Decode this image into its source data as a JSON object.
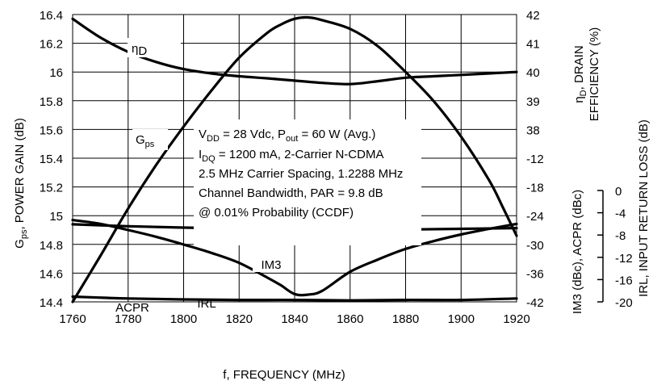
{
  "chart_data": {
    "type": "line",
    "x": {
      "label": "f, FREQUENCY (MHz)",
      "range": [
        1760,
        1920
      ],
      "ticks": [
        "1760",
        "1780",
        "1800",
        "1820",
        "1840",
        "1860",
        "1880",
        "1900",
        "1920"
      ]
    },
    "y_left": {
      "label_main": "G",
      "label_sub": "ps",
      "label_rest": ", POWER GAIN (dB)",
      "range": [
        14.4,
        16.4
      ],
      "ticks": [
        "16.4",
        "16.2",
        "16",
        "15.8",
        "15.6",
        "15.4",
        "15.2",
        "15",
        "14.8",
        "14.6",
        "14.4"
      ]
    },
    "y_right_upper": {
      "label_line1_main": "η",
      "label_line1_sub": "D",
      "label_line1_rest": ", DRAIN",
      "label_line2": "EFFICIENCY (%)",
      "range": [
        37,
        42
      ],
      "ticks": [
        "42",
        "41",
        "40",
        "39",
        "38"
      ]
    },
    "y_right_lower": {
      "label": "IM3 (dBc), ACPR (dBc)",
      "range": [
        -42,
        -12
      ],
      "ticks": [
        "-12",
        "-18",
        "-24",
        "-30",
        "-36",
        "-42"
      ]
    },
    "y_irl": {
      "label": "IRL, INPUT RETURN LOSS (dB)",
      "range": [
        -20,
        0
      ],
      "ticks": [
        "0",
        "-4",
        "-8",
        "-12",
        "-16",
        "-20"
      ]
    },
    "grid": true,
    "series": [
      {
        "name": "G",
        "name_sub": "ps",
        "axis": "left",
        "x": [
          1760,
          1770,
          1780,
          1790,
          1800,
          1810,
          1820,
          1830,
          1835,
          1840,
          1845,
          1850,
          1860,
          1870,
          1880,
          1890,
          1900,
          1910,
          1915,
          1920
        ],
        "y": [
          14.4,
          14.72,
          15.05,
          15.35,
          15.62,
          15.87,
          16.1,
          16.27,
          16.33,
          16.37,
          16.38,
          16.36,
          16.3,
          16.18,
          16.0,
          15.8,
          15.55,
          15.25,
          15.06,
          14.86
        ]
      },
      {
        "name": "η",
        "name_sub": "D",
        "axis": "right_upper",
        "x": [
          1760,
          1770,
          1780,
          1790,
          1800,
          1810,
          1820,
          1830,
          1840,
          1850,
          1860,
          1870,
          1880,
          1890,
          1900,
          1910,
          1920
        ],
        "y": [
          41.85,
          41.2,
          40.7,
          40.35,
          40.1,
          39.95,
          39.85,
          39.78,
          39.7,
          39.62,
          39.58,
          39.68,
          39.8,
          39.85,
          39.9,
          39.95,
          40.0
        ]
      },
      {
        "name": "IRL",
        "axis": "irl",
        "x": [
          1760,
          1770,
          1780,
          1790,
          1800,
          1810,
          1820,
          1830,
          1835,
          1840,
          1845,
          1850,
          1860,
          1870,
          1880,
          1890,
          1900,
          1910,
          1920
        ],
        "y": [
          -5.3,
          -6.0,
          -7.1,
          -8.3,
          -9.7,
          -11.2,
          -13.0,
          -15.6,
          -17.0,
          -18.6,
          -18.7,
          -18.0,
          -14.6,
          -12.4,
          -10.5,
          -9.1,
          -7.9,
          -6.9,
          -6.0
        ]
      },
      {
        "name": "IM3",
        "axis": "right_lower",
        "x": [
          1760,
          1780,
          1800,
          1820,
          1840,
          1860,
          1880,
          1900,
          1920
        ],
        "y": [
          -25.8,
          -26.2,
          -26.5,
          -26.7,
          -26.8,
          -26.9,
          -26.9,
          -26.75,
          -26.6
        ]
      },
      {
        "name": "ACPR",
        "axis": "right_lower",
        "x": [
          1760,
          1780,
          1800,
          1820,
          1840,
          1860,
          1880,
          1900,
          1920
        ],
        "y": [
          -40.9,
          -41.3,
          -41.5,
          -41.6,
          -41.6,
          -41.7,
          -41.6,
          -41.6,
          -41.3
        ]
      }
    ],
    "annotation": {
      "line1_a": "V",
      "line1_a_sub": "DD",
      "line1_b": " = 28 Vdc, P",
      "line1_b_sub": "out",
      "line1_c": " = 60 W (Avg.)",
      "line2_a": "I",
      "line2_a_sub": "DQ",
      "line2_b": " = 1200 mA, 2-Carrier N-CDMA",
      "line3": "2.5 MHz Carrier Spacing, 1.2288 MHz",
      "line4": "Channel Bandwidth, PAR = 9.8 dB",
      "line5": "@ 0.01% Probability (CCDF)"
    }
  }
}
